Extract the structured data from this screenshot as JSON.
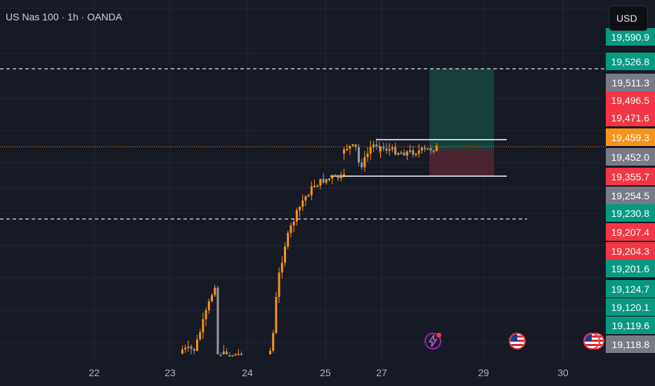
{
  "header": {
    "title": "US Nas 100 · 1h · OANDA"
  },
  "currency_button": {
    "label": "USD"
  },
  "price_labels": [
    {
      "text": "19,590.9",
      "color": "#089981"
    },
    {
      "text": "19,526.8",
      "color": "#089981"
    },
    {
      "text": "19,511.3",
      "color": "#787b86"
    },
    {
      "text": "19,496.5",
      "color": "#f23645"
    },
    {
      "text": "19,471.6",
      "color": "#f23645"
    },
    {
      "text": "19,459.3",
      "color": "#f7931a"
    },
    {
      "text": "19,452.0",
      "color": "#787b86"
    },
    {
      "text": "19,355.7",
      "color": "#f23645"
    },
    {
      "text": "19,254.5",
      "color": "#787b86"
    },
    {
      "text": "19,230.8",
      "color": "#089981"
    },
    {
      "text": "19,207.4",
      "color": "#f23645"
    },
    {
      "text": "19,204.3",
      "color": "#f23645"
    },
    {
      "text": "19,201.6",
      "color": "#089981"
    },
    {
      "text": "19,124.7",
      "color": "#089981"
    },
    {
      "text": "19,120.1",
      "color": "#089981"
    },
    {
      "text": "19,119.6",
      "color": "#089981"
    },
    {
      "text": "19,118.8",
      "color": "#787b86"
    }
  ],
  "time_labels": [
    "22",
    "23",
    "24",
    "25",
    "27",
    "29",
    "30"
  ],
  "events": [
    {
      "icon": "lightning-icon"
    },
    {
      "icon": "us-flag-icon"
    },
    {
      "icon": "us-flag-icon"
    }
  ],
  "colors": {
    "background": "#161a25",
    "grid": "#232632",
    "bull_candle": "#f7931a",
    "bear_candle": "#9598a1",
    "profit_zone": "#16403b",
    "loss_zone": "#4a2430",
    "current_price_line": "#f7931a"
  },
  "chart_data": {
    "type": "candlestick",
    "symbol": "US Nas 100",
    "interval": "1h",
    "source": "OANDA",
    "currency": "USD",
    "dates": [
      "22",
      "23",
      "24",
      "25",
      "27",
      "29",
      "30"
    ],
    "segments": [
      {
        "name": "day23",
        "points": [
          [
            0.2,
            0.05
          ],
          [
            0.35,
            0.35
          ],
          [
            0.55,
            0.75
          ],
          [
            0.4,
            1.0
          ],
          [
            0.25,
            0.6
          ],
          [
            0.15,
            0.1
          ],
          [
            0.05,
            0.0
          ]
        ]
      },
      {
        "name": "day24_25",
        "points": [
          [
            0.02,
            0.02
          ],
          [
            0.1,
            0.4
          ],
          [
            0.2,
            0.6
          ],
          [
            0.3,
            0.72
          ],
          [
            0.45,
            0.85
          ],
          [
            0.6,
            0.93
          ],
          [
            0.75,
            0.96
          ],
          [
            0.9,
            0.97
          ]
        ]
      },
      {
        "name": "day25_26",
        "points": [
          [
            0.0,
            0.96
          ],
          [
            0.2,
            0.97
          ],
          [
            0.35,
            0.95
          ],
          [
            0.4,
            0.8
          ],
          [
            0.5,
            0.78
          ],
          [
            0.6,
            0.86
          ],
          [
            0.75,
            0.98
          ],
          [
            0.9,
            1.0
          ]
        ]
      },
      {
        "name": "day27",
        "points": [
          [
            0.0,
            1.0
          ],
          [
            0.2,
            0.93
          ],
          [
            0.35,
            0.88
          ],
          [
            0.55,
            0.89
          ],
          [
            0.7,
            0.92
          ],
          [
            0.85,
            0.96
          ],
          [
            1.0,
            1.0
          ]
        ]
      }
    ]
  }
}
